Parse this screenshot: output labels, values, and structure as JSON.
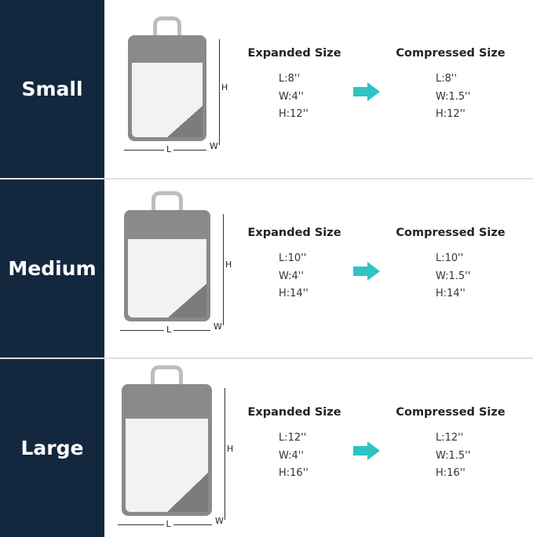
{
  "colors": {
    "side_panel": "#13283f",
    "arrow": "#2ec4c4"
  },
  "rows": [
    {
      "size": "Small",
      "expanded_title": "Expanded Size",
      "compressed_title": "Compressed Size",
      "expanded": {
        "l": "L:8''",
        "w": "W:4''",
        "h": "H:12''"
      },
      "compressed": {
        "l": "L:8''",
        "w": "W:1.5''",
        "h": "H:12''"
      }
    },
    {
      "size": "Medium",
      "expanded_title": "Expanded Size",
      "compressed_title": "Compressed Size",
      "expanded": {
        "l": "L:10''",
        "w": "W:4''",
        "h": "H:14''"
      },
      "compressed": {
        "l": "L:10''",
        "w": "W:1.5''",
        "h": "H:14''"
      }
    },
    {
      "size": "Large",
      "expanded_title": "Expanded Size",
      "compressed_title": "Compressed Size",
      "expanded": {
        "l": "L:12''",
        "w": "W:4''",
        "h": "H:16''"
      },
      "compressed": {
        "l": "L:12''",
        "w": "W:1.5''",
        "h": "H:16''"
      }
    }
  ],
  "dimension_labels": {
    "l": "L",
    "w": "W",
    "h": "H"
  },
  "icons": {
    "arrow": "arrow-right-icon"
  }
}
